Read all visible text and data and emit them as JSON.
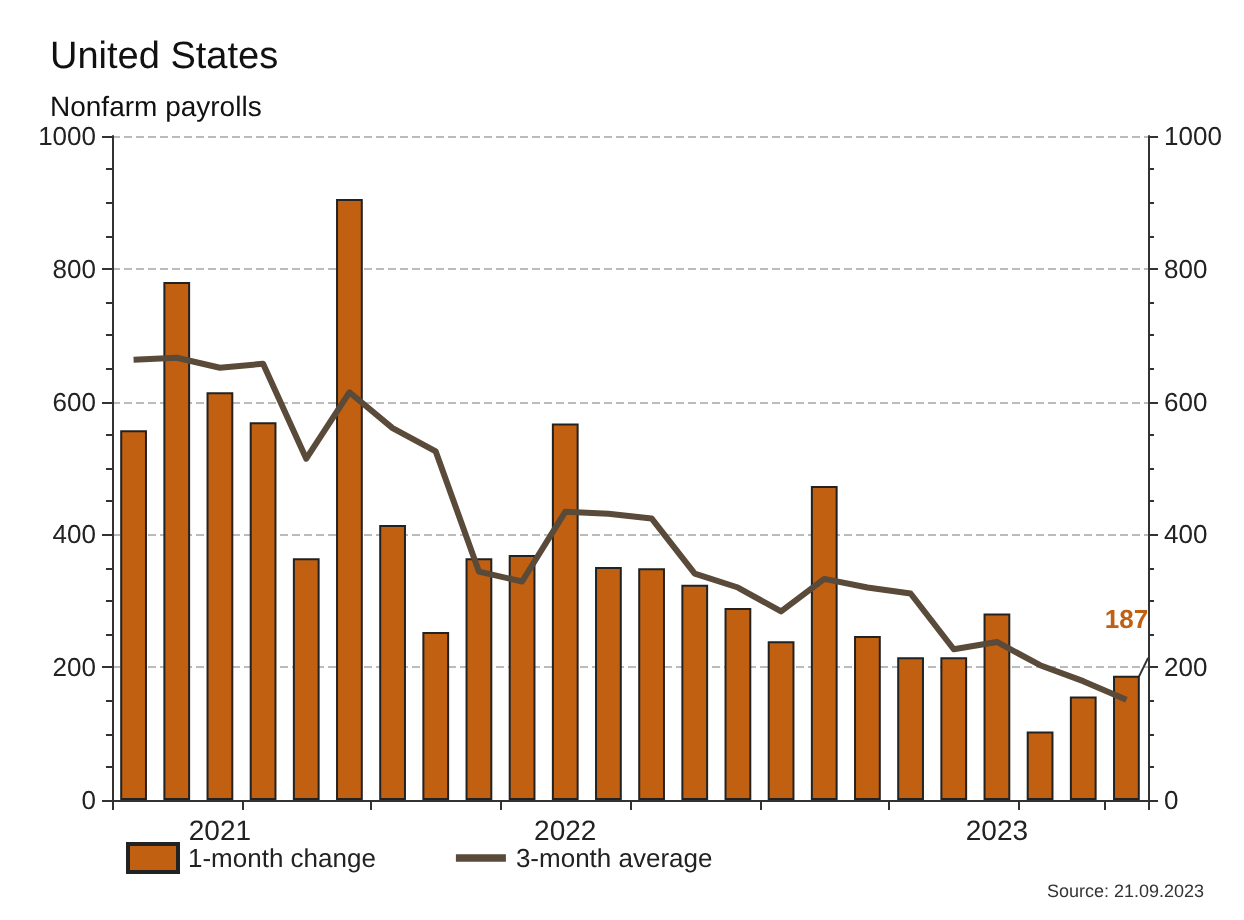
{
  "chart_data": {
    "type": "bar",
    "title": "United States",
    "subtitle": "Nonfarm payrolls",
    "categories": [
      null,
      null,
      "2021",
      null,
      null,
      null,
      null,
      null,
      null,
      null,
      "2022",
      null,
      null,
      null,
      null,
      null,
      null,
      null,
      null,
      null,
      "2023",
      null,
      null,
      null
    ],
    "series": [
      {
        "name": "1-month change",
        "color": "#c06010",
        "values": [
          557,
          780,
          614,
          569,
          364,
          905,
          414,
          253,
          364,
          369,
          567,
          351,
          349,
          324,
          289,
          239,
          473,
          247,
          215,
          215,
          281,
          103,
          156,
          187
        ],
        "value_labels": [
          null,
          null,
          null,
          null,
          null,
          null,
          null,
          null,
          null,
          null,
          null,
          null,
          null,
          null,
          null,
          null,
          null,
          null,
          null,
          null,
          null,
          null,
          null,
          "187"
        ]
      },
      {
        "name": "3-month average",
        "type": "line",
        "color": "#594a3a",
        "values": [
          663,
          666,
          651,
          657,
          514,
          614,
          560,
          525,
          344,
          329,
          434,
          431,
          424,
          341,
          320,
          284,
          333,
          320,
          311,
          227,
          238,
          203,
          179,
          151
        ]
      }
    ],
    "ylim": [
      0,
      1000
    ],
    "yticks": [
      0,
      200,
      400,
      600,
      800,
      1000
    ],
    "y2lim": [
      0,
      1000
    ],
    "y2ticks": [
      0,
      200,
      400,
      600,
      800,
      1000
    ],
    "grid": "y",
    "legend": "bottom left",
    "marker": "none",
    "annotations": [
      "Source: 21.09.2023"
    ]
  }
}
